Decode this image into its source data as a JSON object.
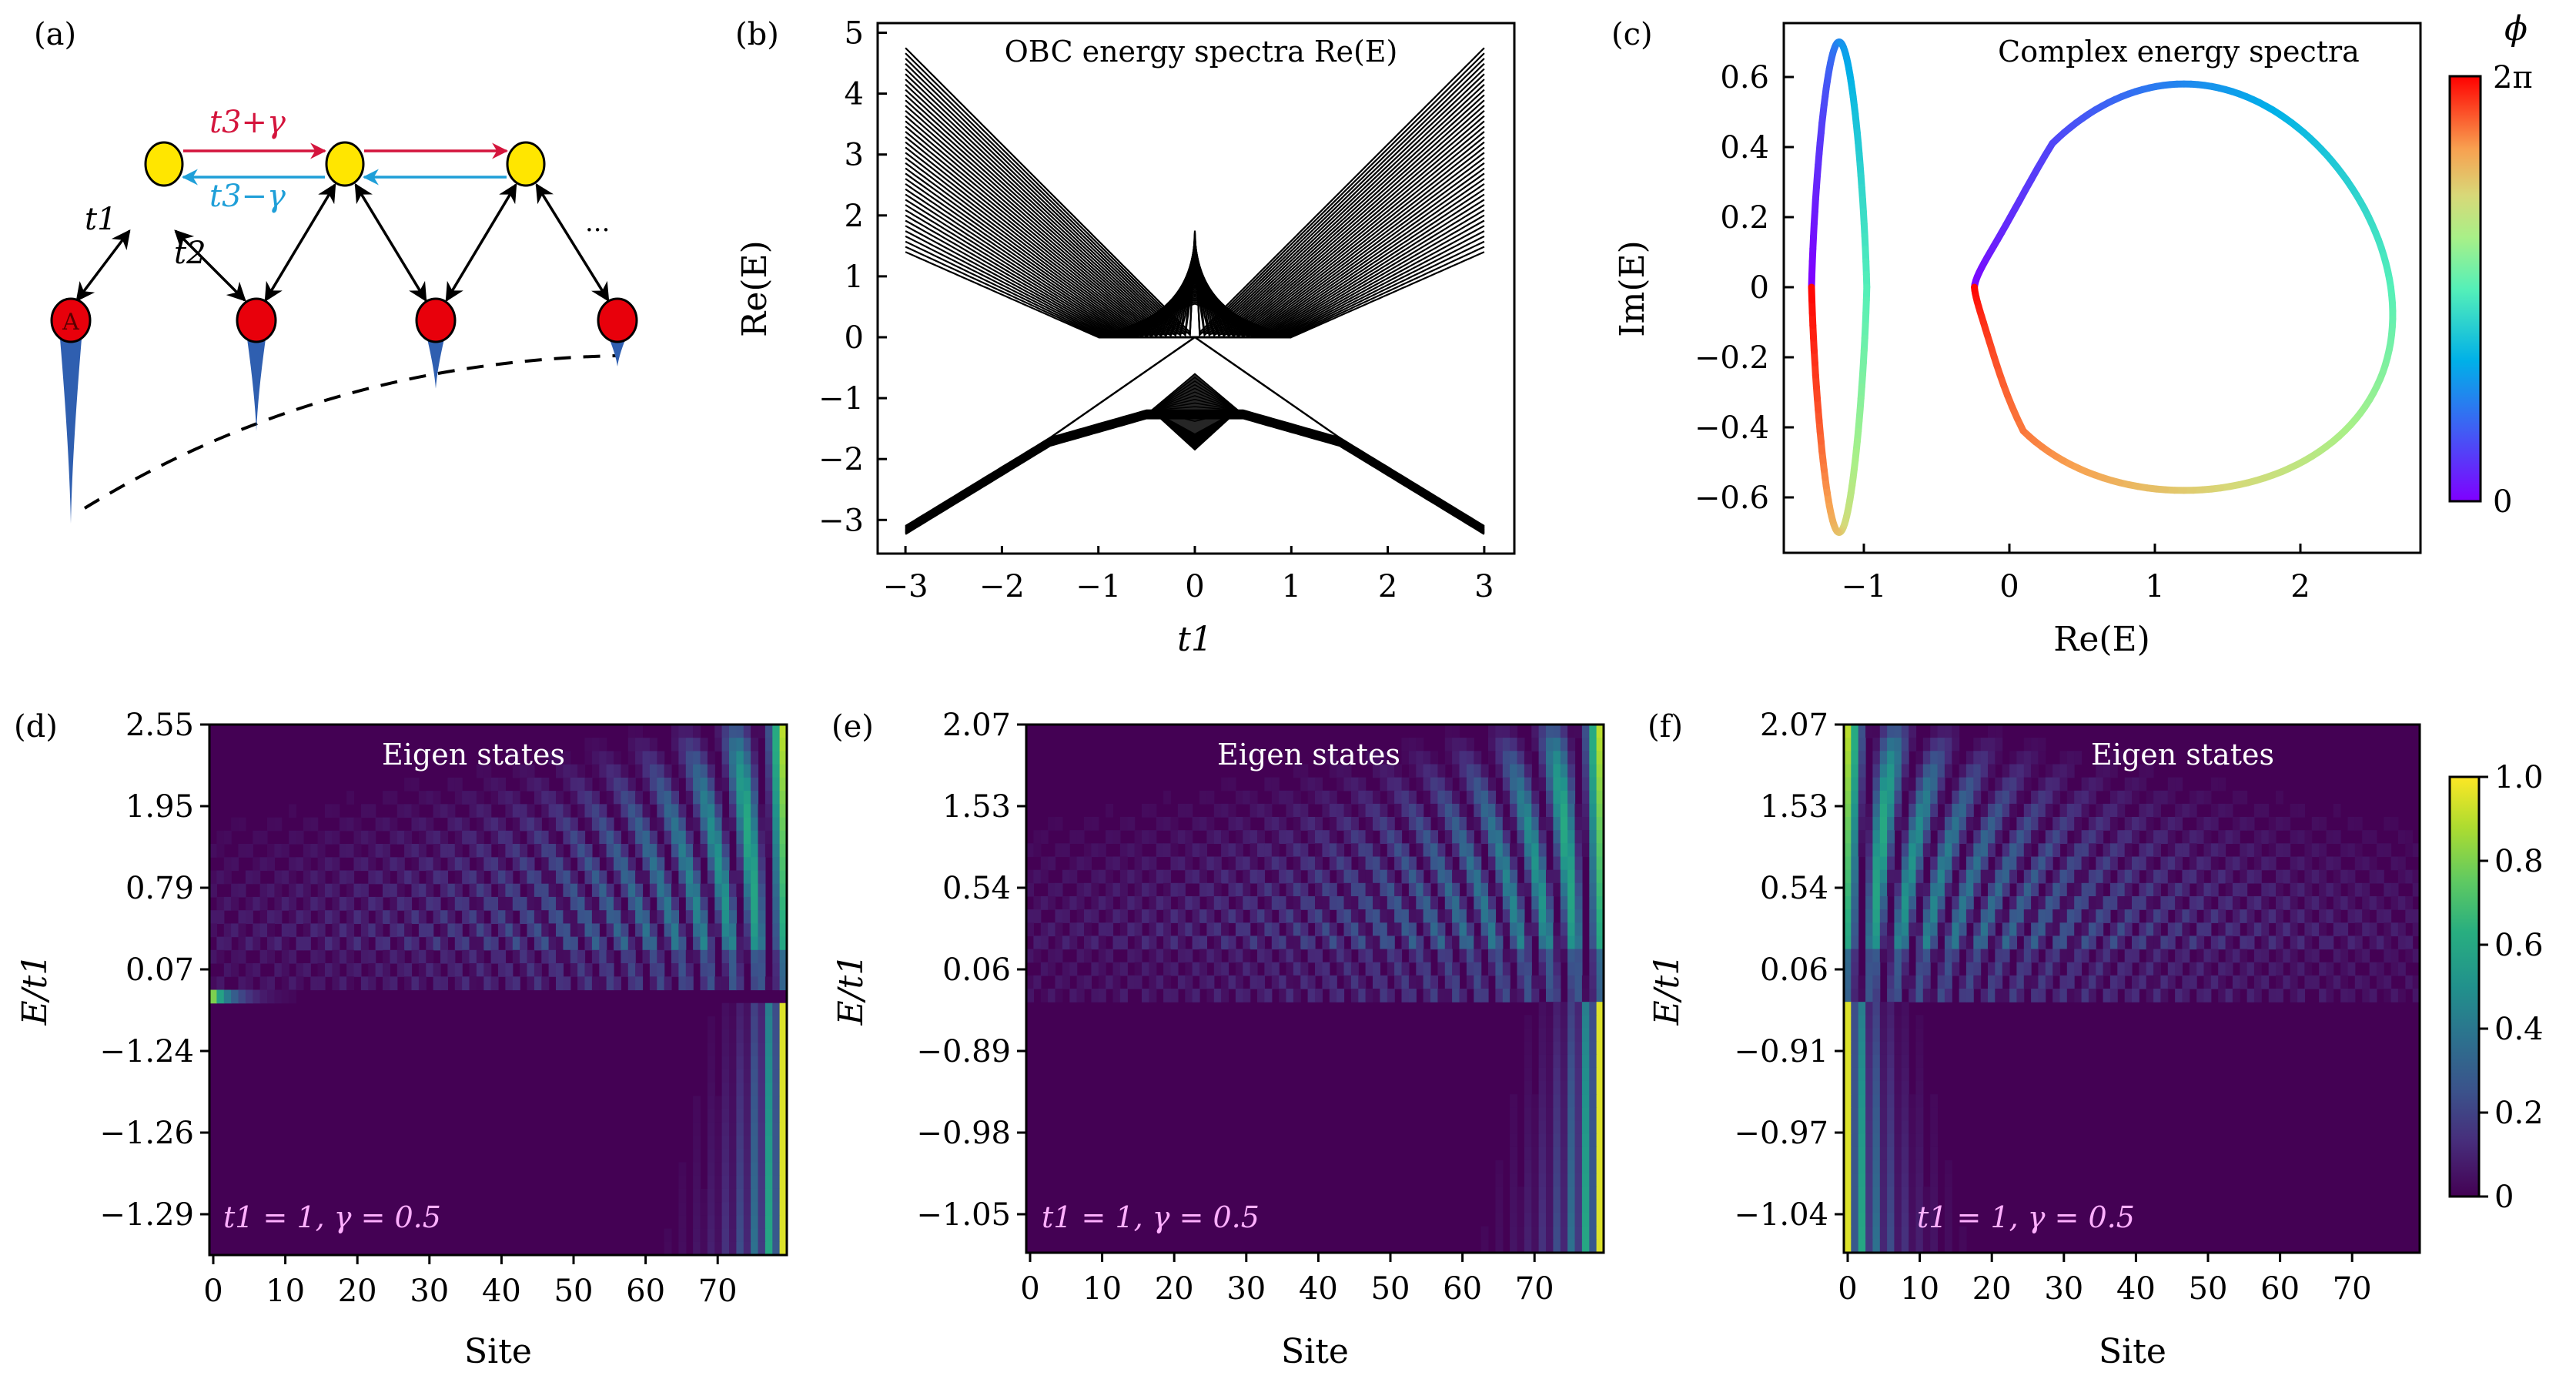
{
  "figure": {
    "panels": {
      "a": {
        "label": "(a)",
        "hop_forward_label": "t3+γ",
        "hop_backward_label": "t3−γ",
        "t1_label": "t1",
        "t2_label": "t2",
        "site_A_label": "A",
        "ellipsis": "···",
        "colors": {
          "upper_site": "#ffe600",
          "lower_site": "#e8000b",
          "forward_arrow": "#d4143c",
          "backward_arrow": "#1f9fd8",
          "wavefunction": "#2f5fb0"
        },
        "wavefunction_amplitudes": [
          1.0,
          0.5,
          0.27,
          0.15
        ]
      },
      "b": {
        "label": "(b)"
      },
      "c": {
        "label": "(c)"
      },
      "d": {
        "label": "(d)"
      },
      "e": {
        "label": "(e)"
      },
      "f": {
        "label": "(f)"
      }
    }
  },
  "chart_data": [
    {
      "panel": "b",
      "type": "line",
      "title": "OBC energy spectra Re(E)",
      "xlabel": "t1",
      "ylabel": "Re(E)",
      "xlim": [
        -3.25,
        3.25
      ],
      "ylim": [
        -3.6,
        5.2
      ],
      "xticks": [
        -3,
        -2,
        -1,
        0,
        1,
        2,
        3
      ],
      "xtick_labels": [
        "−3",
        "−2",
        "−1",
        "0",
        "1",
        "2",
        "3"
      ],
      "yticks": [
        5,
        4,
        3,
        2,
        1,
        0,
        -1,
        -2,
        -3
      ],
      "ytick_labels": [
        "5",
        "4",
        "3",
        "2",
        "1",
        "0",
        "−1",
        "−2",
        "−3"
      ],
      "upper_band": {
        "n_lines": 40,
        "at_t1_pm3_range": [
          1.4,
          4.75
        ],
        "at_t1_0_range": [
          0.55,
          1.75
        ],
        "touches_zero_near_t1": [
          -1.0,
          1.0
        ]
      },
      "lower_band": {
        "endpoints_at_t1_pm3": -3.1,
        "peak_at_t1_0": -0.6,
        "bottom_at_t1_0": -1.85,
        "shoulder_at_t1_pm0_5": -1.2
      },
      "edge_state_lines": {
        "zero_line_range": [
          -1.0,
          1.0
        ],
        "triangle_apex": [
          0,
          0
        ],
        "triangle_base_t1": [
          -1.5,
          1.5
        ],
        "triangle_base_E": -1.65
      },
      "line_color": "#000000"
    },
    {
      "panel": "c",
      "type": "scatter",
      "title": "Complex energy spectra",
      "xlabel": "Re(E)",
      "ylabel": "Im(E)",
      "xlim": [
        -1.56,
        2.81
      ],
      "ylim": [
        -0.77,
        0.77
      ],
      "xticks": [
        -1,
        0,
        1,
        2
      ],
      "xtick_labels": [
        "−1",
        "0",
        "1",
        "2"
      ],
      "yticks": [
        0.6,
        0.4,
        0.2,
        0,
        -0.2,
        -0.4,
        -0.6
      ],
      "ytick_labels": [
        "0.6",
        "0.4",
        "0.2",
        "0",
        "−0.2",
        "−0.4",
        "−0.6"
      ],
      "left_loop": {
        "re_range": [
          -1.36,
          -0.98
        ],
        "im_range": [
          -0.7,
          0.7
        ],
        "top_at_re": -1.12
      },
      "right_loop": {
        "re_range": [
          -0.24,
          2.65
        ],
        "im_range": [
          -0.58,
          0.58
        ],
        "extreme_at_re": 1.53,
        "small_loop_re": [
          -0.24,
          0.0
        ],
        "small_loop_im": [
          -0.05,
          0.05
        ]
      },
      "colorbar": {
        "label": "ϕ",
        "min_label": "0",
        "max_label": "2π",
        "colormap": "rainbow",
        "range": [
          0,
          6.2832
        ]
      }
    },
    {
      "panel": "d",
      "type": "heatmap",
      "title": "Eigen states",
      "annotation": "t1 = 1, γ = 0.5",
      "xlabel": "Site",
      "ylabel": "E/t1",
      "xticks": [
        0,
        10,
        20,
        30,
        40,
        50,
        60,
        70
      ],
      "xtick_labels": [
        "0",
        "10",
        "20",
        "30",
        "40",
        "50",
        "60",
        "70"
      ],
      "ytick_labels": [
        "2.55",
        "1.95",
        "0.79",
        "0.07",
        "−1.24",
        "−1.26",
        "−1.29"
      ],
      "n_sites": 80,
      "localization": "right",
      "zero_mode_localization": "left"
    },
    {
      "panel": "e",
      "type": "heatmap",
      "title": "Eigen states",
      "annotation": "t1 = 1, γ = 0.5",
      "xlabel": "Site",
      "ylabel": "E/t1",
      "xticks": [
        0,
        10,
        20,
        30,
        40,
        50,
        60,
        70
      ],
      "xtick_labels": [
        "0",
        "10",
        "20",
        "30",
        "40",
        "50",
        "60",
        "70"
      ],
      "ytick_labels": [
        "2.07",
        "1.53",
        "0.54",
        "0.06",
        "−0.89",
        "−0.98",
        "−1.05"
      ],
      "n_sites": 80,
      "localization": "right"
    },
    {
      "panel": "f",
      "type": "heatmap",
      "title": "Eigen states",
      "annotation": "t1 = 1, γ = 0.5",
      "xlabel": "Site",
      "ylabel": "E/t1",
      "xticks": [
        0,
        10,
        20,
        30,
        40,
        50,
        60,
        70
      ],
      "xtick_labels": [
        "0",
        "10",
        "20",
        "30",
        "40",
        "50",
        "60",
        "70"
      ],
      "ytick_labels": [
        "2.07",
        "1.53",
        "0.54",
        "0.06",
        "−0.91",
        "−0.97",
        "−1.04"
      ],
      "n_sites": 80,
      "localization": "left",
      "colorbar": {
        "colormap": "viridis",
        "range": [
          0,
          1
        ],
        "ticks": [
          1.0,
          0.8,
          0.6,
          0.4,
          0.2,
          0
        ],
        "tick_labels": [
          "1.0",
          "0.8",
          "0.6",
          "0.4",
          "0.2",
          "0"
        ]
      }
    }
  ]
}
